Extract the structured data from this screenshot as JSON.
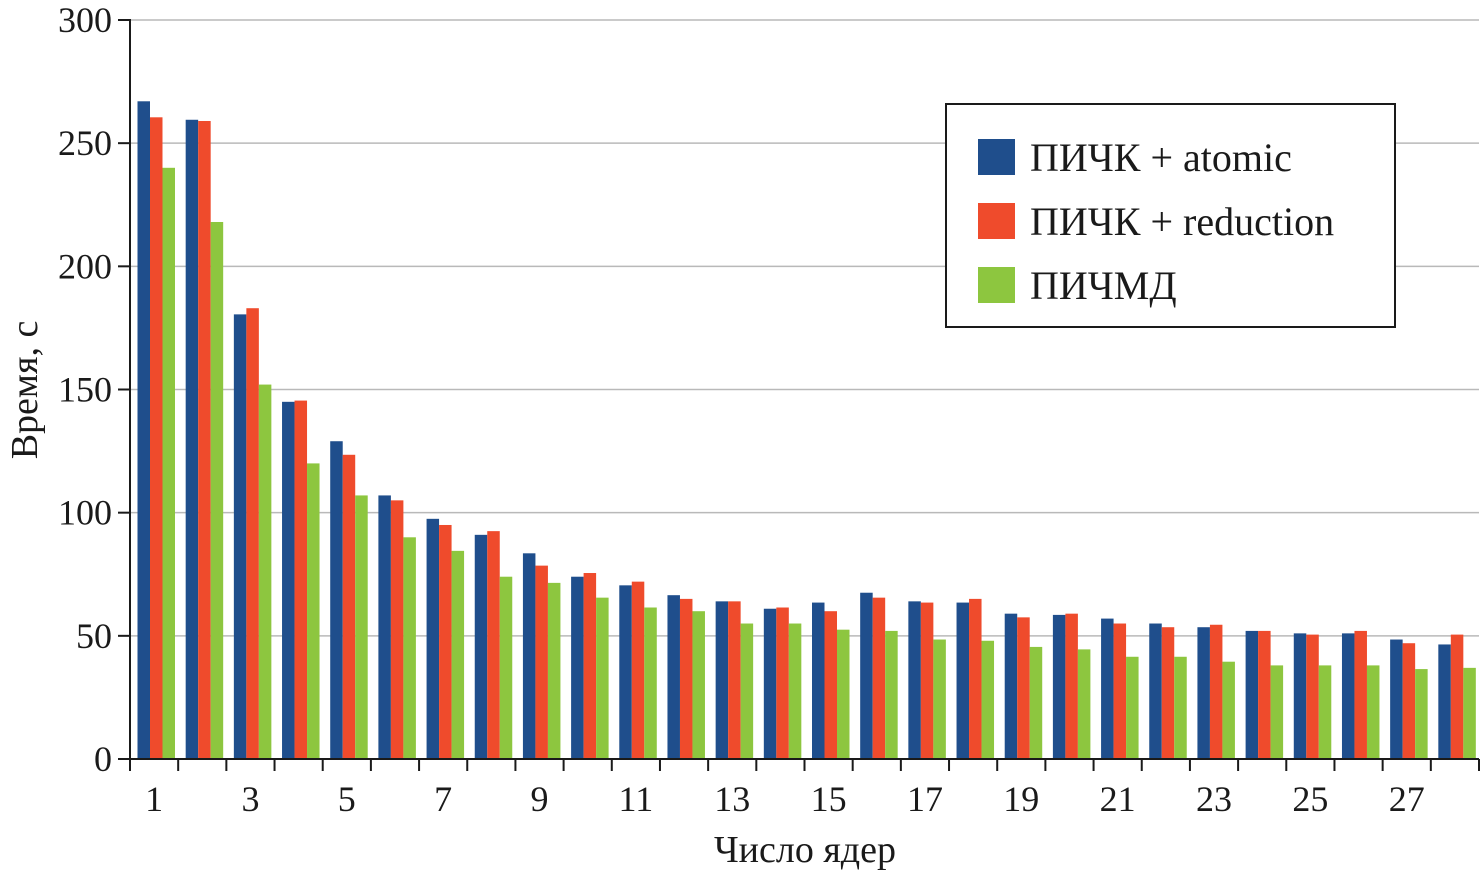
{
  "chart_data": {
    "type": "bar",
    "xlabel": "Число ядер",
    "ylabel": "Время, с",
    "ylim": [
      0,
      300
    ],
    "yticks": [
      "0",
      "50",
      "100",
      "150",
      "200",
      "250",
      "300"
    ],
    "grid": true,
    "legend_position": "top-right",
    "categories": [
      "1",
      "2",
      "3",
      "4",
      "5",
      "6",
      "7",
      "8",
      "9",
      "10",
      "11",
      "12",
      "13",
      "14",
      "15",
      "16",
      "17",
      "18",
      "19",
      "20",
      "21",
      "22",
      "23",
      "24",
      "25",
      "26",
      "27",
      "28"
    ],
    "category_tick_labels": [
      "1",
      "",
      "3",
      "",
      "5",
      "",
      "7",
      "",
      "9",
      "",
      "11",
      "",
      "13",
      "",
      "15",
      "",
      "17",
      "",
      "19",
      "",
      "21",
      "",
      "23",
      "",
      "25",
      "",
      "27",
      ""
    ],
    "series": [
      {
        "name": "ПИЧК + atomic",
        "color": "#1f4e8c",
        "values": [
          267,
          259.5,
          180.5,
          145,
          129,
          107,
          97.5,
          91,
          83.5,
          74,
          70.5,
          66.5,
          64,
          61,
          63.5,
          67.5,
          64,
          63.5,
          59,
          58.5,
          57,
          55,
          53.5,
          52,
          51,
          51,
          48.5,
          46.5
        ]
      },
      {
        "name": "ПИЧК + reduction",
        "color": "#ef4b2c",
        "values": [
          260.5,
          259,
          183,
          145.5,
          123.5,
          105,
          95,
          92.5,
          78.5,
          75.5,
          72,
          65,
          64,
          61.5,
          60,
          65.5,
          63.5,
          65,
          57.5,
          59,
          55,
          53.5,
          54.5,
          52,
          50.5,
          52,
          47,
          50.5
        ]
      },
      {
        "name": "ПИЧМД",
        "color": "#8dc63f",
        "values": [
          240,
          218,
          152,
          120,
          107,
          90,
          84.5,
          74,
          71.5,
          65.5,
          61.5,
          60,
          55,
          55,
          52.5,
          52,
          48.5,
          48,
          45.5,
          44.5,
          41.5,
          41.5,
          39.5,
          38,
          38,
          38,
          36.5,
          37
        ]
      }
    ]
  }
}
